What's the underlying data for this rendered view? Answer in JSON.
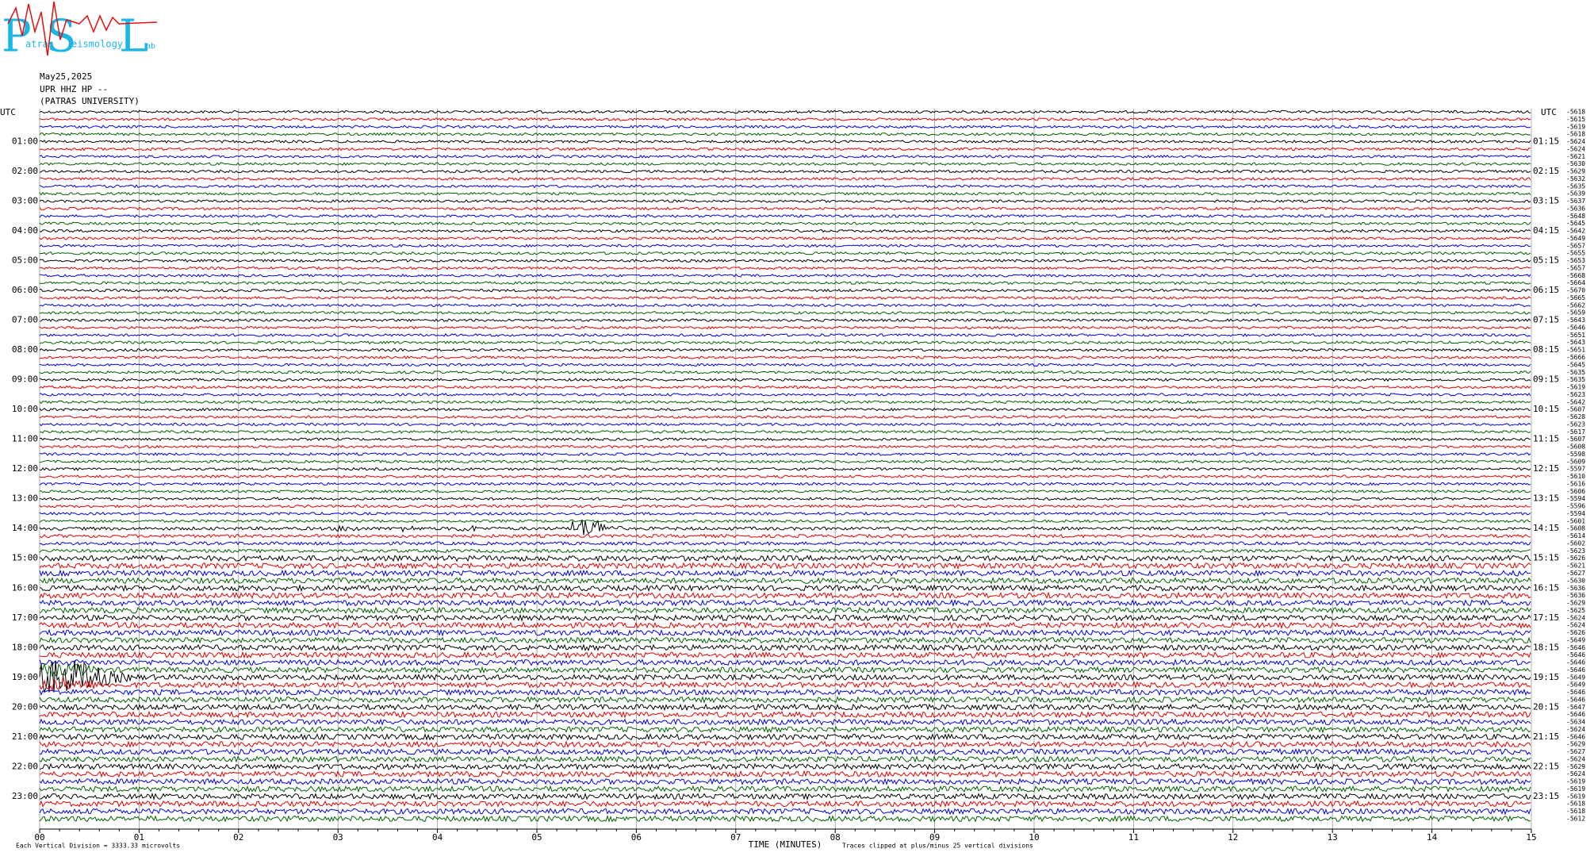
{
  "logo": {
    "p": "P",
    "atras": "atras",
    "s": "S",
    "eismology": "eismology",
    "l": "L",
    "ab": "ab"
  },
  "header": {
    "date": "May25,2025",
    "station": "UPR HHZ HP --",
    "institution": "(PATRAS UNIVERSITY)"
  },
  "utc_left": "UTC",
  "utc_right": "UTC",
  "hour_labels_left": [
    "01:00",
    "02:00",
    "03:00",
    "04:00",
    "05:00",
    "06:00",
    "07:00",
    "08:00",
    "09:00",
    "10:00",
    "11:00",
    "12:00",
    "13:00",
    "14:00",
    "15:00",
    "16:00",
    "17:00",
    "18:00",
    "19:00",
    "20:00",
    "21:00",
    "22:00",
    "23:00"
  ],
  "hour_labels_right": [
    "01:15",
    "02:15",
    "03:15",
    "04:15",
    "05:15",
    "06:15",
    "07:15",
    "08:15",
    "09:15",
    "10:15",
    "11:15",
    "12:15",
    "13:15",
    "14:15",
    "15:15",
    "16:15",
    "17:15",
    "18:15",
    "19:15",
    "20:15",
    "21:15",
    "22:15",
    "23:15"
  ],
  "trace_offsets": [
    "-5618",
    "-5615",
    "-5619",
    "-5618",
    "-5624",
    "-5624",
    "-5621",
    "-5630",
    "-5629",
    "-5632",
    "-5635",
    "-5639",
    "-5637",
    "-5636",
    "-5648",
    "-5645",
    "-5642",
    "-5649",
    "-5657",
    "-5655",
    "-5653",
    "-5657",
    "-5668",
    "-5664",
    "-5670",
    "-5665",
    "-5662",
    "-5659",
    "-5643",
    "-5646",
    "-5651",
    "-5643",
    "-5651",
    "-5666",
    "-5645",
    "-5635",
    "-5635",
    "-5619",
    "-5623",
    "-5642",
    "-5607",
    "-5628",
    "-5623",
    "-5617",
    "-5607",
    "-5608",
    "-5598",
    "-5609",
    "-5597",
    "-5610",
    "-5616",
    "-5606",
    "-5594",
    "-5596",
    "-5594",
    "-5601",
    "-5608",
    "-5614",
    "-5602",
    "-5623",
    "-5626",
    "-5621",
    "-5627",
    "-5630",
    "-5636",
    "-5636",
    "-5629",
    "-5625",
    "-5624",
    "-5624",
    "-5626",
    "-5649",
    "-5646",
    "-5646",
    "-5646",
    "-5646",
    "-5649",
    "-5649",
    "-5646",
    "-5646",
    "-5647",
    "-5646",
    "-5634",
    "-5624",
    "-5646",
    "-5629",
    "-5627",
    "-5624",
    "-5629",
    "-5624",
    "-5619",
    "-5619",
    "-5619",
    "-5618",
    "-5618",
    "-5612"
  ],
  "x_ticks": [
    "00",
    "01",
    "02",
    "03",
    "04",
    "05",
    "06",
    "07",
    "08",
    "09",
    "10",
    "11",
    "12",
    "13",
    "14",
    "15"
  ],
  "footer": {
    "division": "Each Vertical Division = 3333.33 microvolts",
    "axis_title": "TIME (MINUTES)",
    "clipping": "Traces clipped at plus/minus 25 vertical divisions"
  }
}
